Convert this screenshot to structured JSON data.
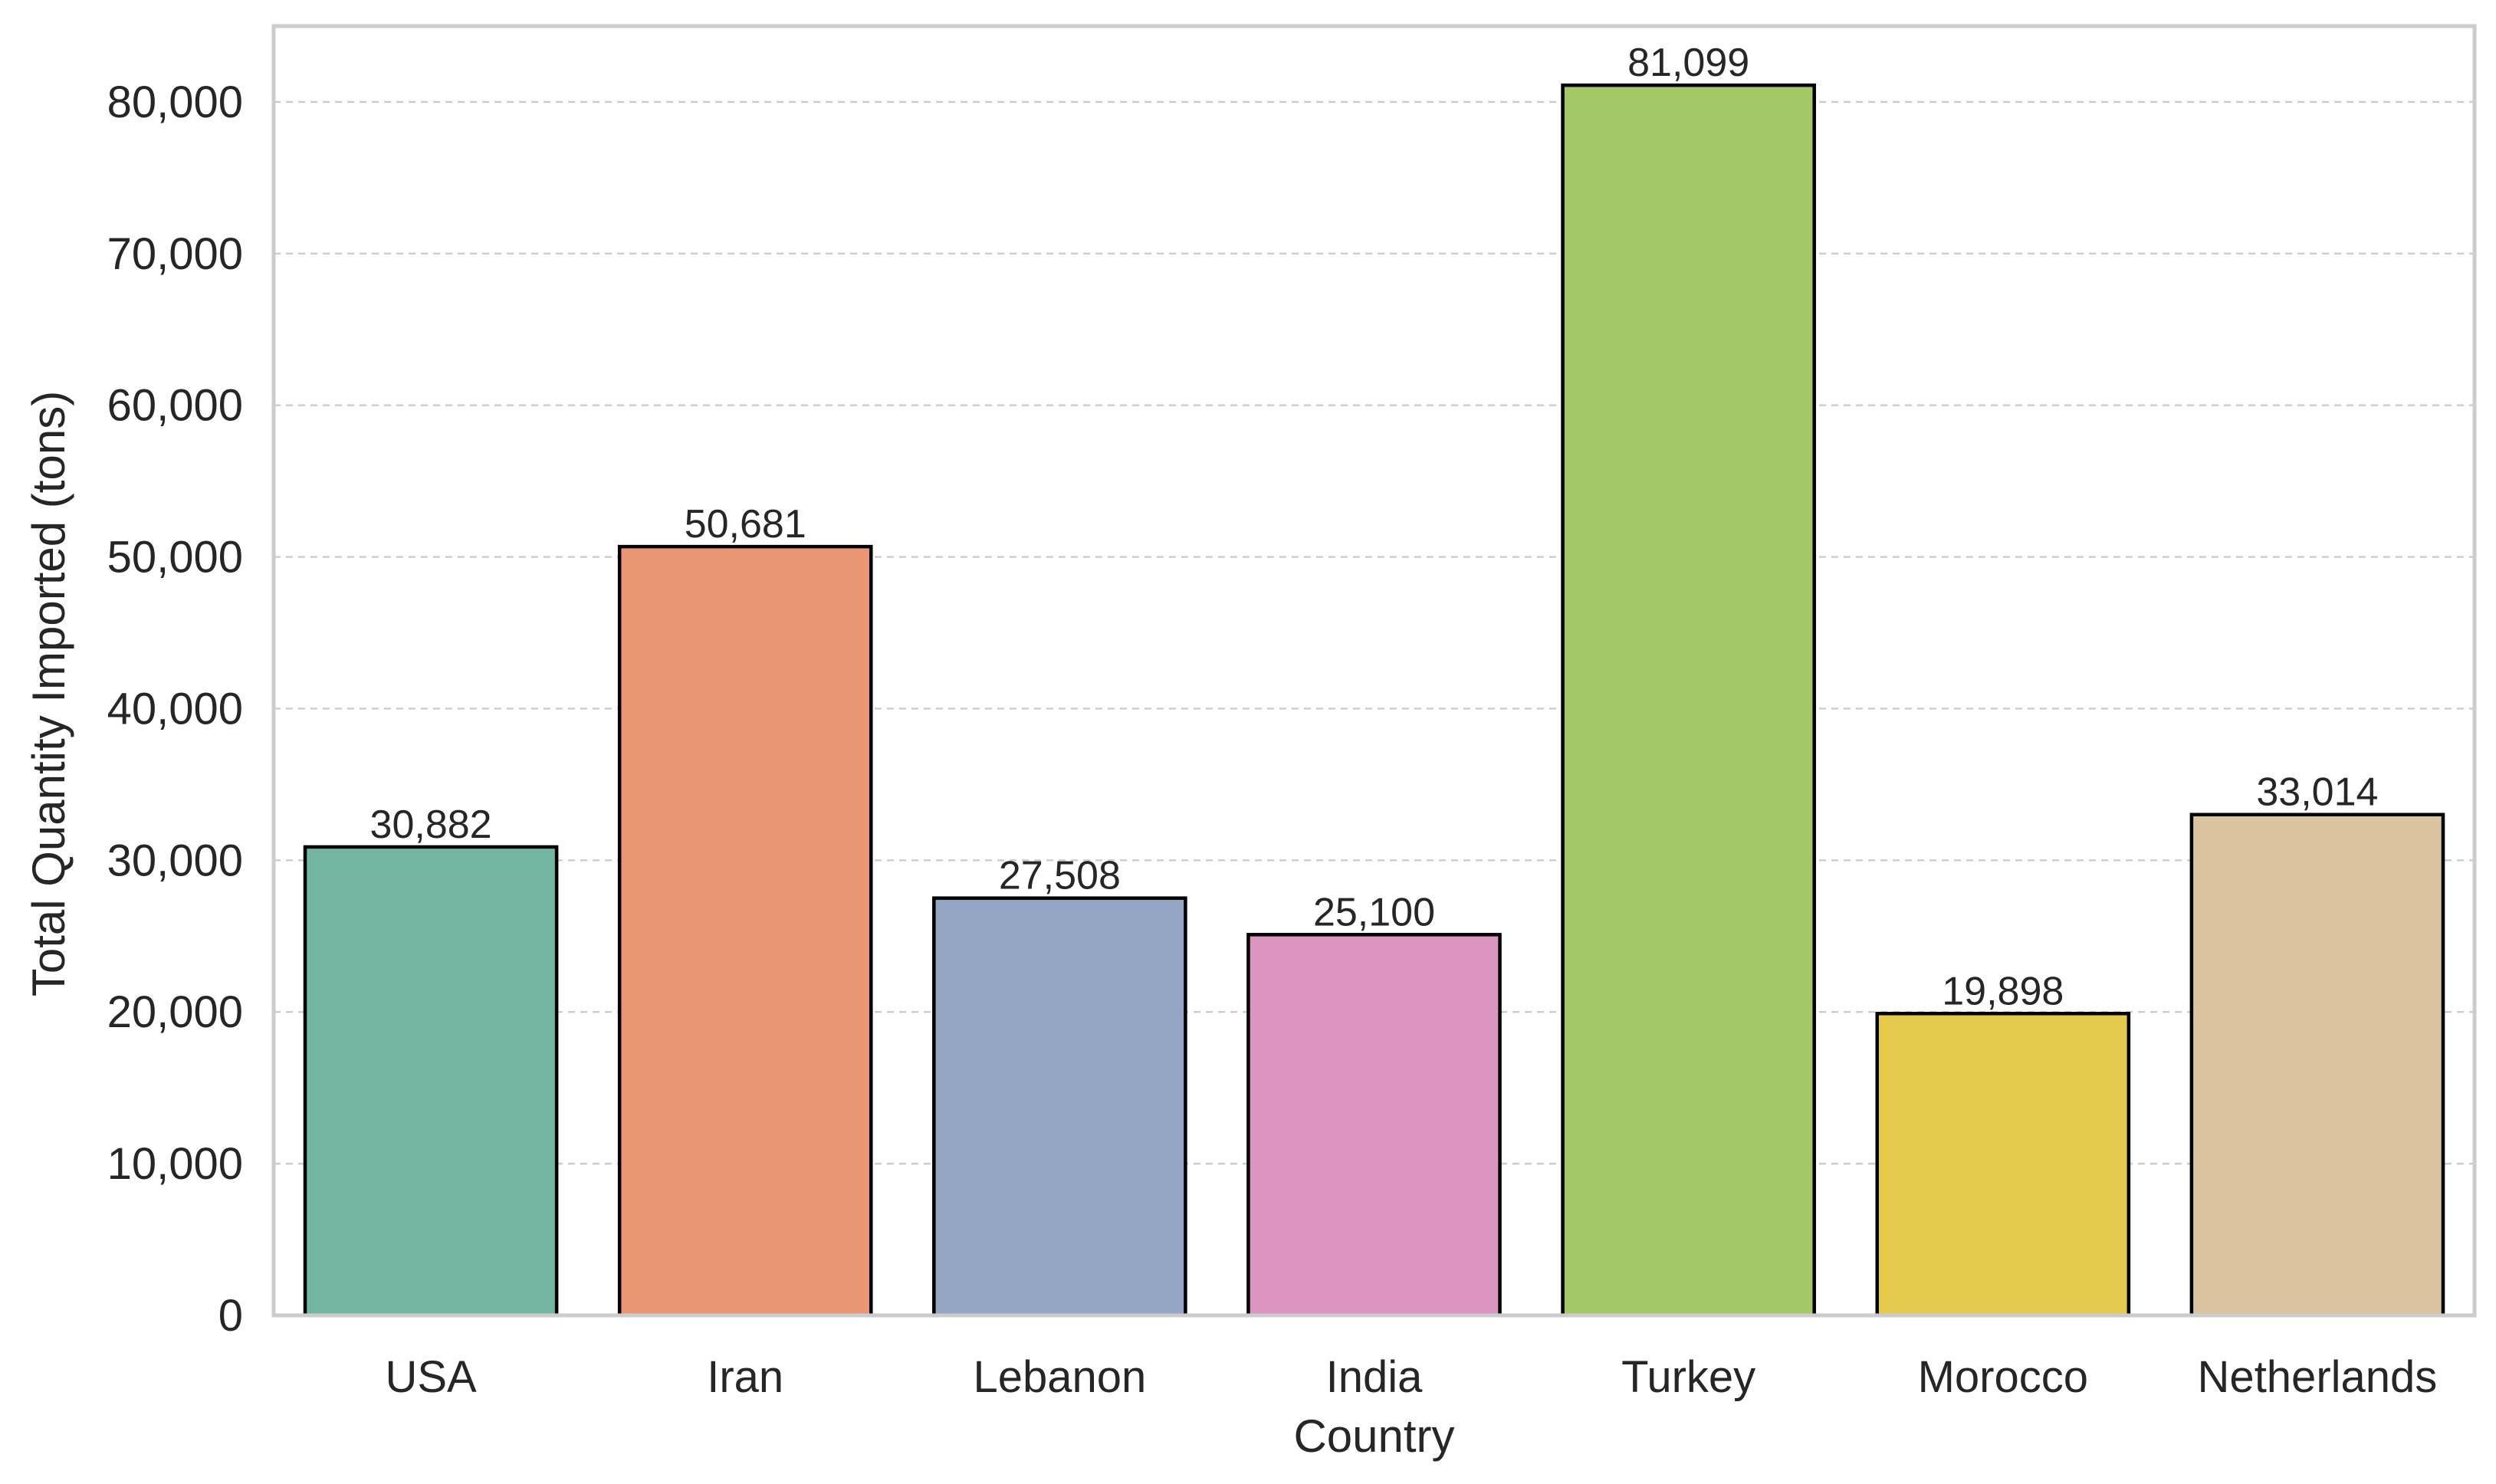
{
  "chart_data": {
    "type": "bar",
    "categories": [
      "USA",
      "Iran",
      "Lebanon",
      "India",
      "Turkey",
      "Morocco",
      "Netherlands"
    ],
    "values": [
      30882,
      50681,
      27508,
      25100,
      81099,
      19898,
      33014
    ],
    "value_labels": [
      "30,882",
      "50,681",
      "27,508",
      "25,100",
      "81,099",
      "19,898",
      "33,014"
    ],
    "colors": [
      "#72b5a1",
      "#e89673",
      "#95a5c4",
      "#db95bf",
      "#a3c966",
      "#e4cb4b",
      "#dbc39f"
    ],
    "title": "",
    "xlabel": "Country",
    "ylabel": "Total Quantity Imported (tons)",
    "ylim": [
      0,
      85000
    ],
    "yticks": [
      0,
      10000,
      20000,
      30000,
      40000,
      50000,
      60000,
      70000,
      80000
    ],
    "ytick_labels": [
      "0",
      "10,000",
      "20,000",
      "30,000",
      "40,000",
      "50,000",
      "60,000",
      "70,000",
      "80,000"
    ],
    "grid": true,
    "grid_axis": "y",
    "legend": "none"
  }
}
